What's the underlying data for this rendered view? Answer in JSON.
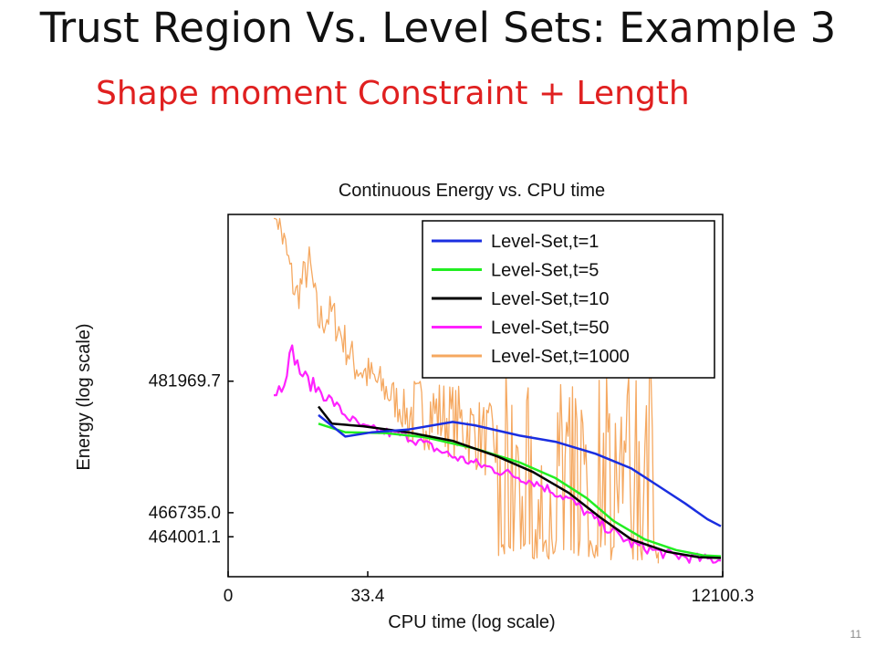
{
  "slide": {
    "title": "Trust Region Vs. Level Sets: Example 3",
    "subtitle": "Shape moment Constraint + Length",
    "page_number": "11",
    "subtitle_color": "#e02020"
  },
  "chart_data": {
    "type": "line",
    "title": "Continuous Energy vs. CPU time",
    "xlabel": "CPU time (log scale)",
    "ylabel": "Energy (log scale)",
    "x_tick_labels": [
      "0",
      "33.4",
      "12100.3"
    ],
    "y_tick_labels": [
      "481969.7",
      "466735.0",
      "464001.1"
    ],
    "legend_position": "top-right",
    "grid": false,
    "series": [
      {
        "name": "Level-Set,t=1",
        "color": "#1a2ee0",
        "noise": 0,
        "points": [
          [
            0.1,
            478000
          ],
          [
            0.16,
            475500
          ],
          [
            0.22,
            476000
          ],
          [
            0.3,
            476300
          ],
          [
            0.4,
            477200
          ],
          [
            0.45,
            476800
          ],
          [
            0.55,
            475600
          ],
          [
            0.63,
            474900
          ],
          [
            0.72,
            473500
          ],
          [
            0.8,
            471800
          ],
          [
            0.86,
            469800
          ],
          [
            0.92,
            467800
          ],
          [
            0.97,
            466000
          ],
          [
            1.0,
            465200
          ]
        ]
      },
      {
        "name": "Level-Set,t=5",
        "color": "#22ee22",
        "noise": 0,
        "points": [
          [
            0.1,
            477000
          ],
          [
            0.16,
            476000
          ],
          [
            0.25,
            475900
          ],
          [
            0.34,
            475400
          ],
          [
            0.45,
            474100
          ],
          [
            0.55,
            472500
          ],
          [
            0.63,
            470700
          ],
          [
            0.7,
            468400
          ],
          [
            0.76,
            465800
          ],
          [
            0.83,
            463700
          ],
          [
            0.9,
            462500
          ],
          [
            0.96,
            461900
          ],
          [
            1.0,
            461800
          ]
        ]
      },
      {
        "name": "Level-Set,t=10",
        "color": "#000000",
        "noise": 0,
        "points": [
          [
            0.1,
            479000
          ],
          [
            0.13,
            477000
          ],
          [
            0.2,
            476700
          ],
          [
            0.3,
            476000
          ],
          [
            0.4,
            475000
          ],
          [
            0.5,
            473200
          ],
          [
            0.58,
            471400
          ],
          [
            0.66,
            469000
          ],
          [
            0.73,
            466200
          ],
          [
            0.8,
            463700
          ],
          [
            0.88,
            462300
          ],
          [
            0.95,
            461700
          ],
          [
            1.0,
            461600
          ]
        ]
      },
      {
        "name": "Level-Set,t=50",
        "color": "#ff22ff",
        "noise": 1,
        "points": [
          [
            0.0,
            480600
          ],
          [
            0.02,
            481500
          ],
          [
            0.04,
            485700
          ],
          [
            0.06,
            483000
          ],
          [
            0.08,
            481800
          ],
          [
            0.12,
            480200
          ],
          [
            0.16,
            478000
          ],
          [
            0.2,
            476500
          ],
          [
            0.3,
            475500
          ],
          [
            0.4,
            473200
          ],
          [
            0.5,
            471600
          ],
          [
            0.58,
            470300
          ],
          [
            0.66,
            468300
          ],
          [
            0.73,
            465500
          ],
          [
            0.8,
            463200
          ],
          [
            0.88,
            462000
          ],
          [
            0.95,
            461500
          ],
          [
            1.0,
            461400
          ]
        ]
      },
      {
        "name": "Level-Set,t=1000",
        "color": "#f5a860",
        "noise": 1,
        "points": [
          [
            0.0,
            504000
          ],
          [
            0.05,
            492000
          ],
          [
            0.08,
            496000
          ],
          [
            0.1,
            489000
          ],
          [
            0.13,
            490000
          ],
          [
            0.18,
            484000
          ],
          [
            0.25,
            481000
          ],
          [
            0.3,
            478000
          ],
          [
            0.35,
            478500
          ],
          [
            0.42,
            477000
          ],
          [
            0.48,
            475000
          ],
          [
            0.55,
            474000
          ],
          [
            0.6,
            473500
          ],
          [
            0.68,
            473000
          ],
          [
            0.75,
            474500
          ],
          [
            0.82,
            475500
          ],
          [
            0.86,
            474000
          ]
        ]
      }
    ]
  }
}
